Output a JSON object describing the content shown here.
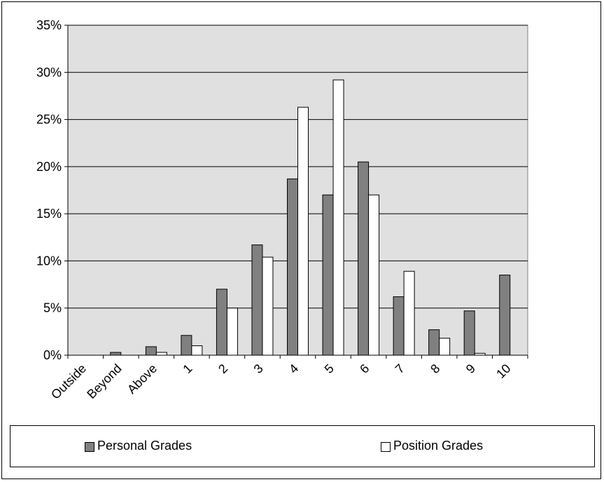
{
  "chart_data": {
    "type": "bar",
    "title": "",
    "xlabel": "",
    "ylabel": "",
    "ylim": [
      0,
      35
    ],
    "y_tick_format": "percent",
    "y_ticks": [
      "0%",
      "5%",
      "10%",
      "15%",
      "20%",
      "25%",
      "30%",
      "35%"
    ],
    "grid": "horizontal",
    "legend_position": "bottom",
    "categories": [
      "Outside",
      "Beyond",
      "Above",
      "1",
      "2",
      "3",
      "4",
      "5",
      "6",
      "7",
      "8",
      "9",
      "10"
    ],
    "series": [
      {
        "name": "Personal Grades",
        "color": "#808080",
        "values": [
          0.0,
          0.3,
          0.9,
          2.1,
          7.0,
          11.7,
          18.7,
          17.0,
          20.5,
          6.2,
          2.7,
          4.7,
          8.5
        ]
      },
      {
        "name": "Position Grades",
        "color": "#ffffff",
        "values": [
          0.0,
          0.0,
          0.3,
          1.0,
          5.0,
          10.4,
          26.3,
          29.2,
          17.0,
          8.9,
          1.8,
          0.2,
          0.0
        ]
      }
    ],
    "plot_background": "#e0e0e0"
  }
}
